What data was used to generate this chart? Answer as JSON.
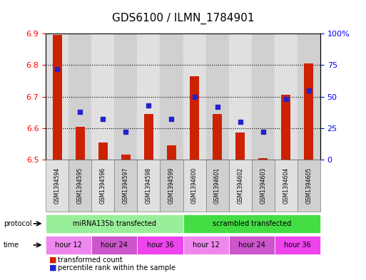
{
  "title": "GDS6100 / ILMN_1784901",
  "samples": [
    "GSM1394594",
    "GSM1394595",
    "GSM1394596",
    "GSM1394597",
    "GSM1394598",
    "GSM1394599",
    "GSM1394600",
    "GSM1394601",
    "GSM1394602",
    "GSM1394603",
    "GSM1394604",
    "GSM1394605"
  ],
  "bar_values": [
    6.895,
    6.605,
    6.555,
    6.515,
    6.645,
    6.545,
    6.765,
    6.645,
    6.585,
    6.505,
    6.705,
    6.805
  ],
  "percentile_values": [
    72,
    38,
    32,
    22,
    43,
    32,
    50,
    42,
    30,
    22,
    48,
    55
  ],
  "ylim": [
    6.5,
    6.9
  ],
  "yticks": [
    6.5,
    6.6,
    6.7,
    6.8,
    6.9
  ],
  "right_yticks": [
    0,
    25,
    50,
    75,
    100
  ],
  "bar_color": "#cc2200",
  "dot_color": "#2222cc",
  "protocol_groups": [
    {
      "label": "miRNA135b transfected",
      "start": 0,
      "end": 6,
      "color": "#99ee99"
    },
    {
      "label": "scrambled transfected",
      "start": 6,
      "end": 12,
      "color": "#44dd44"
    }
  ],
  "time_groups": [
    {
      "label": "hour 12",
      "start": 0,
      "end": 2,
      "color": "#ee88ee"
    },
    {
      "label": "hour 24",
      "start": 2,
      "end": 4,
      "color": "#cc55cc"
    },
    {
      "label": "hour 36",
      "start": 4,
      "end": 6,
      "color": "#ee44ee"
    },
    {
      "label": "hour 12",
      "start": 6,
      "end": 8,
      "color": "#ee88ee"
    },
    {
      "label": "hour 24",
      "start": 8,
      "end": 10,
      "color": "#cc55cc"
    },
    {
      "label": "hour 36",
      "start": 10,
      "end": 12,
      "color": "#ee44ee"
    }
  ],
  "sample_bg_colors": [
    "#e0e0e0",
    "#d0d0d0",
    "#e0e0e0",
    "#d0d0d0",
    "#e0e0e0",
    "#d0d0d0",
    "#e0e0e0",
    "#d0d0d0",
    "#e0e0e0",
    "#d0d0d0",
    "#e0e0e0",
    "#d0d0d0"
  ],
  "legend_items": [
    {
      "label": "transformed count",
      "color": "#cc2200"
    },
    {
      "label": "percentile rank within the sample",
      "color": "#2222cc"
    }
  ]
}
